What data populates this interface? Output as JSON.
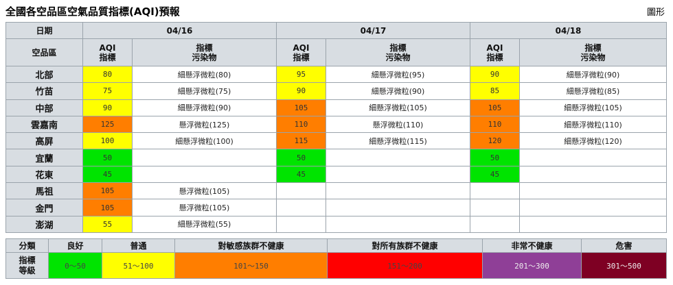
{
  "title": "全國各空品區空氣品質指標(AQI)預報",
  "graph_link": "圖形",
  "header": {
    "date_label": "日期",
    "area_label": "空品區",
    "aqi_label": [
      "AQI",
      "指標"
    ],
    "pollutant_label": [
      "指標",
      "污染物"
    ],
    "dates": [
      "04/16",
      "04/17",
      "04/18"
    ]
  },
  "rows": [
    {
      "area": "北部",
      "days": [
        {
          "aqi": "80",
          "level": "mod",
          "pollutant": "細懸浮微粒(80)"
        },
        {
          "aqi": "95",
          "level": "mod",
          "pollutant": "細懸浮微粒(95)"
        },
        {
          "aqi": "90",
          "level": "mod",
          "pollutant": "細懸浮微粒(90)"
        }
      ]
    },
    {
      "area": "竹苗",
      "days": [
        {
          "aqi": "75",
          "level": "mod",
          "pollutant": "細懸浮微粒(75)"
        },
        {
          "aqi": "90",
          "level": "mod",
          "pollutant": "細懸浮微粒(90)"
        },
        {
          "aqi": "85",
          "level": "mod",
          "pollutant": "細懸浮微粒(85)"
        }
      ]
    },
    {
      "area": "中部",
      "days": [
        {
          "aqi": "90",
          "level": "mod",
          "pollutant": "細懸浮微粒(90)"
        },
        {
          "aqi": "105",
          "level": "usg",
          "pollutant": "細懸浮微粒(105)"
        },
        {
          "aqi": "105",
          "level": "usg",
          "pollutant": "細懸浮微粒(105)"
        }
      ]
    },
    {
      "area": "雲嘉南",
      "days": [
        {
          "aqi": "125",
          "level": "usg",
          "pollutant": "懸浮微粒(125)"
        },
        {
          "aqi": "110",
          "level": "usg",
          "pollutant": "懸浮微粒(110)"
        },
        {
          "aqi": "110",
          "level": "usg",
          "pollutant": "細懸浮微粒(110)"
        }
      ]
    },
    {
      "area": "高屏",
      "days": [
        {
          "aqi": "100",
          "level": "mod",
          "pollutant": "細懸浮微粒(100)"
        },
        {
          "aqi": "115",
          "level": "usg",
          "pollutant": "細懸浮微粒(115)"
        },
        {
          "aqi": "120",
          "level": "usg",
          "pollutant": "細懸浮微粒(120)"
        }
      ]
    },
    {
      "area": "宜蘭",
      "days": [
        {
          "aqi": "50",
          "level": "good",
          "pollutant": ""
        },
        {
          "aqi": "50",
          "level": "good",
          "pollutant": ""
        },
        {
          "aqi": "50",
          "level": "good",
          "pollutant": ""
        }
      ]
    },
    {
      "area": "花東",
      "days": [
        {
          "aqi": "45",
          "level": "good",
          "pollutant": ""
        },
        {
          "aqi": "45",
          "level": "good",
          "pollutant": ""
        },
        {
          "aqi": "45",
          "level": "good",
          "pollutant": ""
        }
      ]
    },
    {
      "area": "馬祖",
      "days": [
        {
          "aqi": "105",
          "level": "usg",
          "pollutant": "懸浮微粒(105)"
        },
        {
          "aqi": "",
          "level": "",
          "pollutant": ""
        },
        {
          "aqi": "",
          "level": "",
          "pollutant": ""
        }
      ]
    },
    {
      "area": "金門",
      "days": [
        {
          "aqi": "105",
          "level": "usg",
          "pollutant": "懸浮微粒(105)"
        },
        {
          "aqi": "",
          "level": "",
          "pollutant": ""
        },
        {
          "aqi": "",
          "level": "",
          "pollutant": ""
        }
      ]
    },
    {
      "area": "澎湖",
      "days": [
        {
          "aqi": "55",
          "level": "mod",
          "pollutant": "細懸浮微粒(55)"
        },
        {
          "aqi": "",
          "level": "",
          "pollutant": ""
        },
        {
          "aqi": "",
          "level": "",
          "pollutant": ""
        }
      ]
    }
  ],
  "legend": {
    "category_label": "分類",
    "index_label": [
      "指標",
      "等級"
    ],
    "levels": [
      {
        "name": "良好",
        "range": "0～50",
        "color": "#00e400"
      },
      {
        "name": "普通",
        "range": "51～100",
        "color": "#ffff00"
      },
      {
        "name": "對敏感族群不健康",
        "range": "101～150",
        "color": "#ff7e00"
      },
      {
        "name": "對所有族群不健康",
        "range": "151～200",
        "color": "#ff0000"
      },
      {
        "name": "非常不健康",
        "range": "201～300",
        "color": "#8f3f97"
      },
      {
        "name": "危害",
        "range": "301～500",
        "color": "#7e0023"
      }
    ]
  }
}
